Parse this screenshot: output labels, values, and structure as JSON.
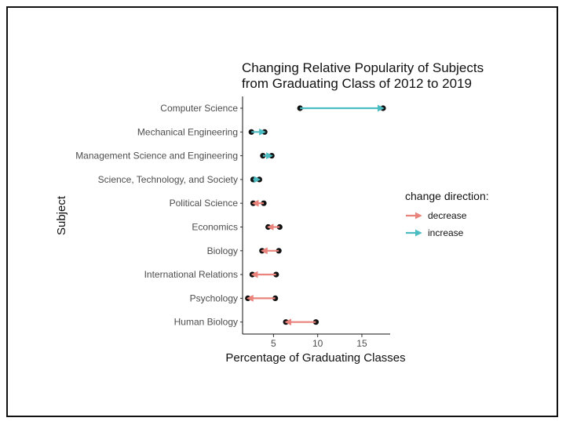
{
  "chart_data": {
    "type": "dumbbell-arrow",
    "title_lines": [
      "Changing Relative Popularity of Subjects",
      "from Graduating Class of 2012 to 2019"
    ],
    "xlabel": "Percentage of Graduating Classes",
    "ylabel": "Subject",
    "xlim": [
      1.5,
      18.2
    ],
    "xticks": [
      5,
      10,
      15
    ],
    "grid": false,
    "legend": {
      "title": "change direction:",
      "position": "right",
      "items": [
        {
          "key": "decrease",
          "label": "decrease",
          "color": "#E9837B"
        },
        {
          "key": "increase",
          "label": "increase",
          "color": "#4BBCC2"
        }
      ]
    },
    "series": [
      {
        "subject": "Computer Science",
        "from_2012": 8.0,
        "to_2019": 17.4
      },
      {
        "subject": "Mechanical Engineering",
        "from_2012": 2.5,
        "to_2019": 4.0
      },
      {
        "subject": "Management Science and Engineering",
        "from_2012": 3.8,
        "to_2019": 4.8
      },
      {
        "subject": "Science, Technology, and Society",
        "from_2012": 2.7,
        "to_2019": 3.4
      },
      {
        "subject": "Political Science",
        "from_2012": 3.9,
        "to_2019": 2.7
      },
      {
        "subject": "Economics",
        "from_2012": 5.7,
        "to_2019": 4.4
      },
      {
        "subject": "Biology",
        "from_2012": 5.6,
        "to_2019": 3.7
      },
      {
        "subject": "International Relations",
        "from_2012": 5.3,
        "to_2019": 2.6
      },
      {
        "subject": "Psychology",
        "from_2012": 5.2,
        "to_2019": 2.1
      },
      {
        "subject": "Human Biology",
        "from_2012": 9.8,
        "to_2019": 6.4
      }
    ]
  }
}
